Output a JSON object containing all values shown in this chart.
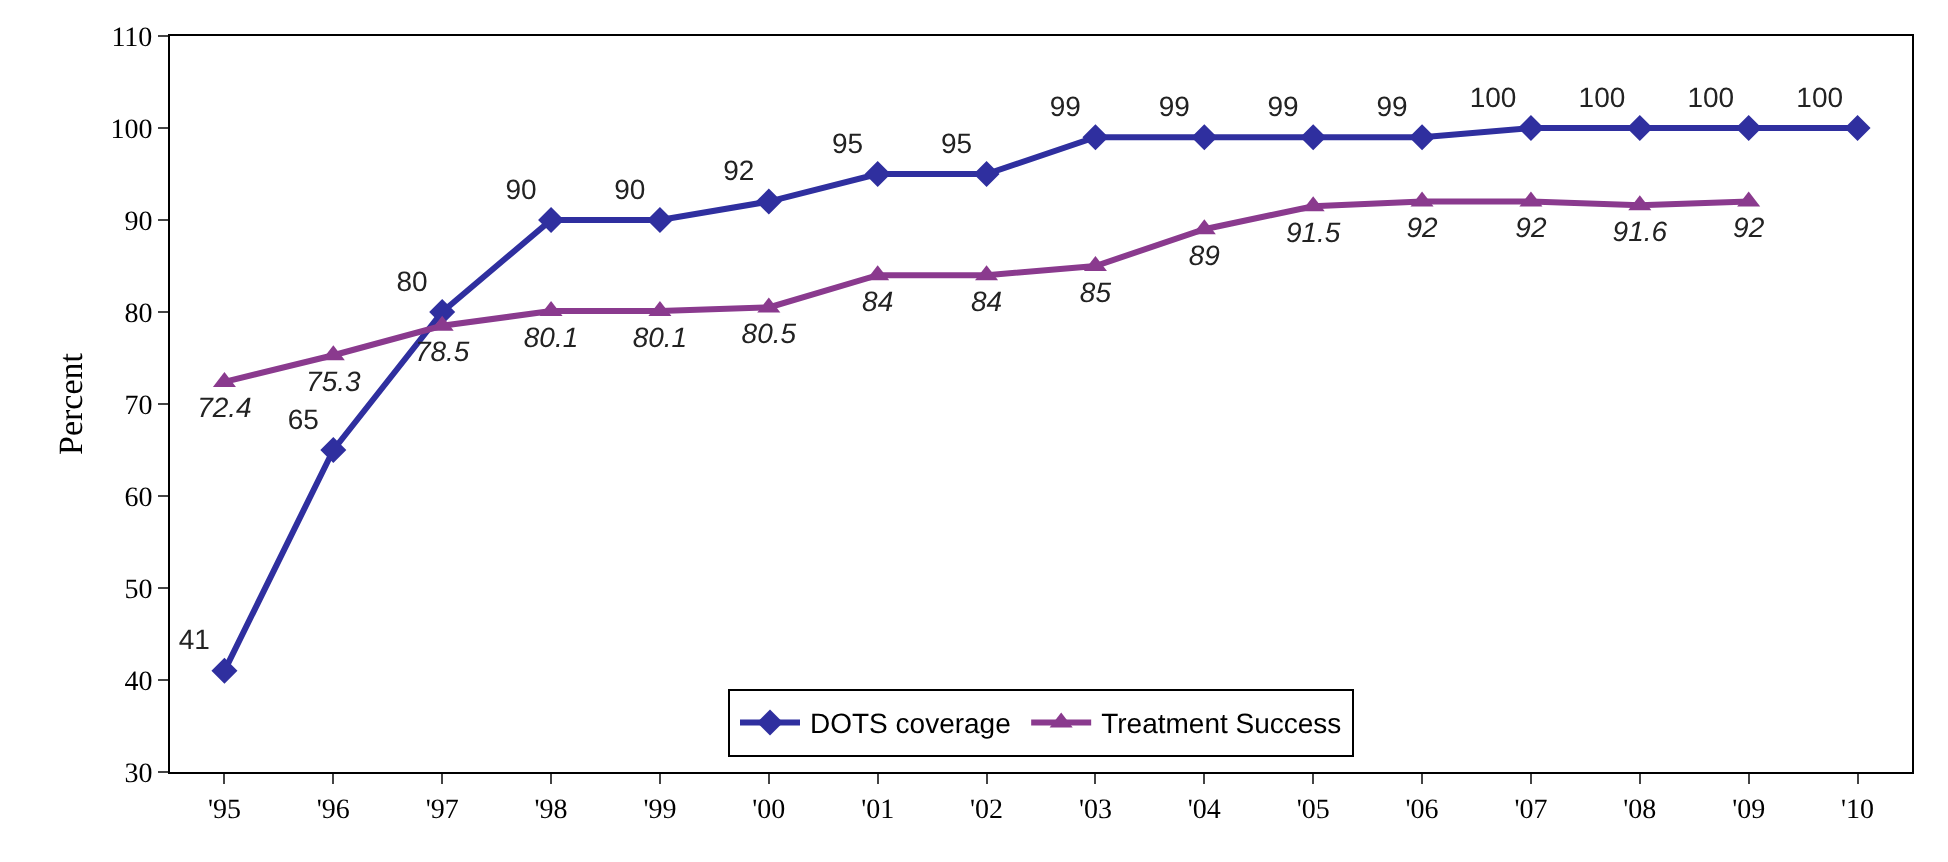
{
  "chart_data": {
    "type": "line",
    "ylabel": "Percent",
    "categories": [
      "'95",
      "'96",
      "'97",
      "'98",
      "'99",
      "'00",
      "'01",
      "'02",
      "'03",
      "'04",
      "'05",
      "'06",
      "'07",
      "'08",
      "'09",
      "'10"
    ],
    "series": [
      {
        "name": "DOTS coverage",
        "color": "#2f2f9f",
        "marker": "diamond",
        "values": [
          41,
          65,
          80,
          90,
          90,
          92,
          95,
          95,
          99,
          99,
          99,
          99,
          100,
          100,
          100,
          100
        ]
      },
      {
        "name": "Treatment Success",
        "color": "#8a3a8e",
        "marker": "triangle",
        "values": [
          72.4,
          75.3,
          78.5,
          80.1,
          80.1,
          80.5,
          84,
          84,
          85,
          89,
          91.5,
          92,
          92,
          91.6,
          92,
          null
        ]
      }
    ],
    "ylim": [
      30,
      110
    ],
    "yticks": [
      30,
      40,
      50,
      60,
      70,
      80,
      90,
      100,
      110
    ],
    "grid": false,
    "legend": "bottom",
    "data_labels": true,
    "line_style": "solid"
  }
}
